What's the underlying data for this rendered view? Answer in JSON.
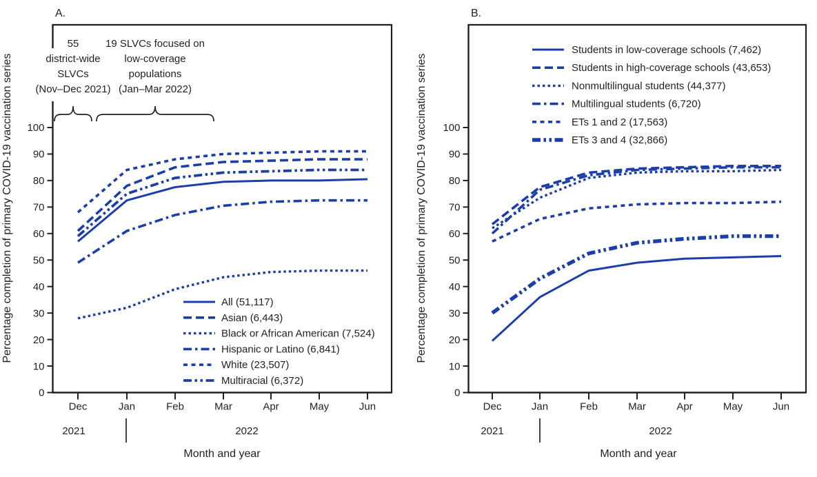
{
  "figure": {
    "y_axis_title": "Percentage completion of primary COVID-19 vaccination series",
    "x_axis_title": "Month and year",
    "line_color": "#1c3ea8",
    "frame_color": "#231f20"
  },
  "chart_data": [
    {
      "type": "line",
      "panel_label": "A.",
      "categories": [
        "Dec",
        "Jan",
        "Feb",
        "Mar",
        "Apr",
        "May",
        "Jun"
      ],
      "year_labels": {
        "left": "2021",
        "right": "2022"
      },
      "xlabel": "Month and year",
      "ylabel": "Percentage completion of primary COVID-19 vaccination series",
      "ylim": [
        0,
        100
      ],
      "yticks": [
        0,
        10,
        20,
        30,
        40,
        50,
        60,
        70,
        80,
        90,
        100
      ],
      "annotations": [
        {
          "lines": [
            "55",
            "district-wide",
            "SLVCs",
            "(Nov–Dec 2021)"
          ]
        },
        {
          "lines": [
            "19 SLVCs focused on",
            "low-coverage",
            "populations",
            "(Jan–Mar 2022)"
          ]
        }
      ],
      "series": [
        {
          "name": "All (51,117)",
          "line_style": "solid",
          "thick": false,
          "values": [
            57,
            72.5,
            77.5,
            79.5,
            80,
            80,
            80.5
          ]
        },
        {
          "name": "Asian (6,443)",
          "line_style": "long-dash",
          "thick": false,
          "values": [
            61,
            78,
            85,
            87,
            87.5,
            88,
            88
          ]
        },
        {
          "name": "Black or African American (7,524)",
          "line_style": "dotted",
          "thick": false,
          "values": [
            28,
            32,
            39,
            43.5,
            45.5,
            46,
            46
          ]
        },
        {
          "name": "Hispanic or Latino (6,841)",
          "line_style": "dash-dot",
          "thick": false,
          "values": [
            49,
            61,
            67,
            70.5,
            72,
            72.5,
            72.5
          ]
        },
        {
          "name": "White (23,507)",
          "line_style": "short-dash",
          "thick": false,
          "values": [
            68,
            84,
            88,
            90,
            90.5,
            91,
            91
          ]
        },
        {
          "name": "Multiracial (6,372)",
          "line_style": "dash-dot-dot",
          "thick": false,
          "values": [
            59,
            75,
            81,
            83,
            83.5,
            84,
            84
          ]
        }
      ]
    },
    {
      "type": "line",
      "panel_label": "B.",
      "categories": [
        "Dec",
        "Jan",
        "Feb",
        "Mar",
        "Apr",
        "May",
        "Jun"
      ],
      "year_labels": {
        "left": "2021",
        "right": "2022"
      },
      "xlabel": "Month and year",
      "ylabel": "Percentage completion of primary COVID-19 vaccination series",
      "ylim": [
        0,
        100
      ],
      "yticks": [
        0,
        10,
        20,
        30,
        40,
        50,
        60,
        70,
        80,
        90,
        100
      ],
      "annotations": [],
      "series": [
        {
          "name": "Students in low-coverage schools (7,462)",
          "line_style": "solid",
          "thick": false,
          "values": [
            19.5,
            36,
            46,
            49,
            50.5,
            51,
            51.5
          ]
        },
        {
          "name": "Students in high-coverage schools (43,653)",
          "line_style": "long-dash",
          "thick": false,
          "values": [
            63.5,
            77.5,
            83,
            84.5,
            85,
            85.5,
            85.5
          ]
        },
        {
          "name": "Nonmultilingual students (44,377)",
          "line_style": "dotted",
          "thick": false,
          "values": [
            62,
            73.5,
            81,
            83,
            83.5,
            83.5,
            84
          ]
        },
        {
          "name": "Multilingual students (6,720)",
          "line_style": "dash-dot",
          "thick": false,
          "values": [
            60,
            76.5,
            82,
            84,
            84.5,
            85,
            85
          ]
        },
        {
          "name": "ETs 1 and 2 (17,563)",
          "line_style": "short-dash",
          "thick": false,
          "values": [
            57,
            65.5,
            69.5,
            71,
            71.5,
            71.5,
            72
          ]
        },
        {
          "name": "ETs 3 and 4 (32,866)",
          "line_style": "dash-dot-dot",
          "thick": true,
          "values": [
            30,
            43,
            52.5,
            56.5,
            58,
            59,
            59
          ]
        }
      ]
    }
  ]
}
